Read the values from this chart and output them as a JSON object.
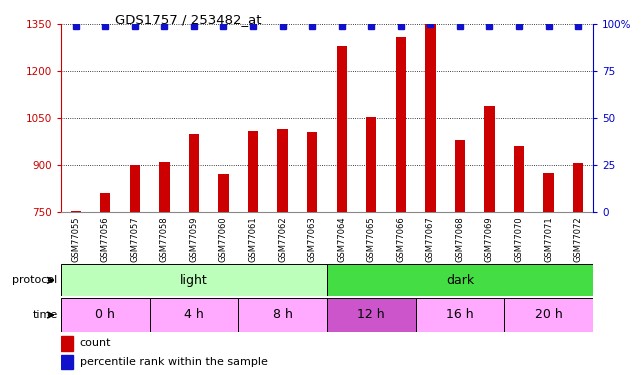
{
  "title": "GDS1757 / 253482_at",
  "samples": [
    "GSM77055",
    "GSM77056",
    "GSM77057",
    "GSM77058",
    "GSM77059",
    "GSM77060",
    "GSM77061",
    "GSM77062",
    "GSM77063",
    "GSM77064",
    "GSM77065",
    "GSM77066",
    "GSM77067",
    "GSM77068",
    "GSM77069",
    "GSM77070",
    "GSM77071",
    "GSM77072"
  ],
  "counts": [
    752,
    810,
    900,
    910,
    1000,
    870,
    1010,
    1015,
    1005,
    1280,
    1055,
    1310,
    1350,
    980,
    1090,
    960,
    875,
    905
  ],
  "percentile_ranks": [
    99,
    99,
    99,
    99,
    99,
    99,
    99,
    99,
    99,
    99,
    99,
    99,
    100,
    99,
    99,
    99,
    99,
    99
  ],
  "ylim_left": [
    750,
    1350
  ],
  "ylim_right": [
    0,
    100
  ],
  "yticks_left": [
    750,
    900,
    1050,
    1200,
    1350
  ],
  "yticks_right": [
    0,
    25,
    50,
    75,
    100
  ],
  "right_tick_labels": [
    "0",
    "25",
    "50",
    "75",
    "100%"
  ],
  "bar_color": "#cc0000",
  "dot_color": "#1111cc",
  "background_color": "#ffffff",
  "light_color": "#bbffbb",
  "dark_color": "#44dd44",
  "time_color_light": "#ffaaff",
  "time_color_dark": "#cc55cc",
  "grid_color": "#000000",
  "axis_label_color_left": "#cc0000",
  "axis_label_color_right": "#0000cc",
  "legend_count_color": "#cc0000",
  "legend_dot_color": "#1111cc",
  "xticklabel_bg": "#cccccc"
}
